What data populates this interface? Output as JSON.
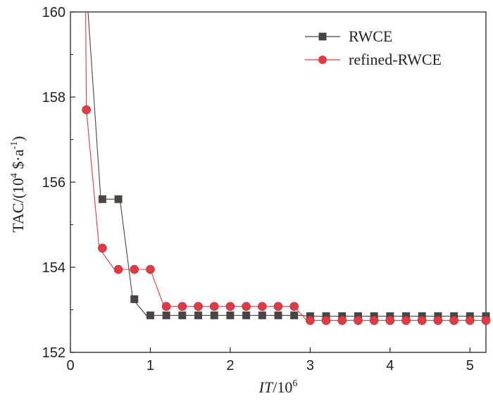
{
  "chart_data": {
    "type": "line",
    "xlabel_italic": "IT",
    "xlabel_rest": "/10",
    "xlabel_sup": "6",
    "ylabel_main": "TAC/(10",
    "ylabel_sup1": "4",
    "ylabel_mid": " $·a",
    "ylabel_sup2": "-1",
    "ylabel_end": ")",
    "xlim": [
      0,
      5.2
    ],
    "ylim": [
      152,
      160
    ],
    "xticks": [
      "0",
      "1",
      "2",
      "3",
      "4",
      "5"
    ],
    "yticks": [
      "152",
      "154",
      "156",
      "158",
      "160"
    ],
    "legend_position": "top-right",
    "grid": false,
    "series": [
      {
        "name": "RWCE",
        "color": "#4a4443",
        "marker": "square",
        "line": [
          [
            0.19,
            160
          ],
          [
            0.22,
            160
          ],
          [
            0.38,
            155.6
          ],
          [
            0.62,
            155.6
          ],
          [
            0.78,
            153.25
          ],
          [
            0.95,
            152.87
          ],
          [
            2.9,
            152.87
          ],
          [
            2.98,
            152.85
          ],
          [
            5.2,
            152.85
          ]
        ],
        "points": [
          [
            0.4,
            155.6
          ],
          [
            0.6,
            155.6
          ],
          [
            0.8,
            153.25
          ],
          [
            1.0,
            152.87
          ],
          [
            1.2,
            152.87
          ],
          [
            1.4,
            152.87
          ],
          [
            1.6,
            152.87
          ],
          [
            1.8,
            152.87
          ],
          [
            2.0,
            152.87
          ],
          [
            2.2,
            152.87
          ],
          [
            2.4,
            152.87
          ],
          [
            2.6,
            152.87
          ],
          [
            2.8,
            152.87
          ],
          [
            3.0,
            152.85
          ],
          [
            3.2,
            152.85
          ],
          [
            3.4,
            152.85
          ],
          [
            3.6,
            152.85
          ],
          [
            3.8,
            152.85
          ],
          [
            4.0,
            152.85
          ],
          [
            4.2,
            152.85
          ],
          [
            4.4,
            152.85
          ],
          [
            4.6,
            152.85
          ],
          [
            4.8,
            152.85
          ],
          [
            5.0,
            152.85
          ],
          [
            5.2,
            152.85
          ]
        ]
      },
      {
        "name": "refined-RWCE",
        "color": "#e03a45",
        "marker": "circle",
        "line": [
          [
            0.19,
            160
          ],
          [
            0.2,
            157.7
          ],
          [
            0.36,
            154.45
          ],
          [
            0.55,
            153.95
          ],
          [
            1.0,
            153.95
          ],
          [
            1.17,
            153.08
          ],
          [
            2.8,
            153.08
          ],
          [
            2.96,
            152.75
          ],
          [
            5.2,
            152.75
          ]
        ],
        "points": [
          [
            0.2,
            157.7
          ],
          [
            0.4,
            154.45
          ],
          [
            0.6,
            153.95
          ],
          [
            0.8,
            153.95
          ],
          [
            1.0,
            153.95
          ],
          [
            1.2,
            153.08
          ],
          [
            1.4,
            153.08
          ],
          [
            1.6,
            153.08
          ],
          [
            1.8,
            153.08
          ],
          [
            2.0,
            153.08
          ],
          [
            2.2,
            153.08
          ],
          [
            2.4,
            153.08
          ],
          [
            2.6,
            153.08
          ],
          [
            2.8,
            153.08
          ],
          [
            3.0,
            152.75
          ],
          [
            3.2,
            152.75
          ],
          [
            3.4,
            152.75
          ],
          [
            3.6,
            152.75
          ],
          [
            3.8,
            152.75
          ],
          [
            4.0,
            152.75
          ],
          [
            4.2,
            152.75
          ],
          [
            4.4,
            152.75
          ],
          [
            4.6,
            152.75
          ],
          [
            4.8,
            152.75
          ],
          [
            5.0,
            152.75
          ],
          [
            5.2,
            152.75
          ]
        ]
      }
    ]
  }
}
